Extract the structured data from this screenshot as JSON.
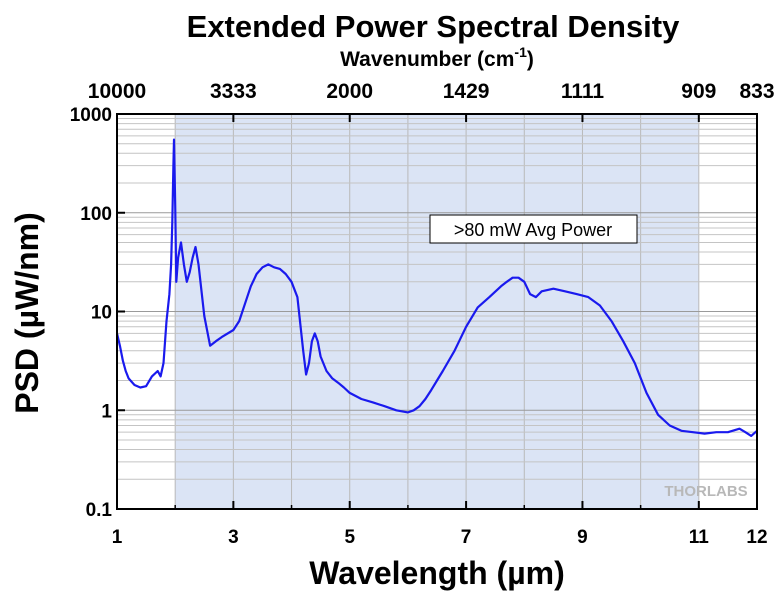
{
  "chart_data": {
    "type": "line",
    "title": "Extended Power Spectral Density",
    "xlabel": "Wavelength (µm)",
    "ylabel": "PSD (µW/nm)",
    "top_axis": {
      "label_main": "Wavenumber (cm",
      "label_sup": "-1",
      "label_end": ")",
      "ticks": [
        {
          "label": "10000",
          "x": 1.0
        },
        {
          "label": "3333",
          "x": 3.0
        },
        {
          "label": "2000",
          "x": 5.0
        },
        {
          "label": "1429",
          "x": 7.0
        },
        {
          "label": "1111",
          "x": 9.0
        },
        {
          "label": "909",
          "x": 11.0
        },
        {
          "label": "833",
          "x": 12.0
        }
      ]
    },
    "x_ticks": [
      1,
      3,
      5,
      7,
      9,
      11,
      12
    ],
    "x_tick_labels": [
      "1",
      "3",
      "5",
      "7",
      "9",
      "11",
      "12"
    ],
    "y_ticks": [
      0.1,
      1,
      10,
      100,
      1000
    ],
    "y_tick_labels": [
      "0.1",
      "1",
      "10",
      "100",
      "1000"
    ],
    "xlim": [
      1,
      12
    ],
    "ylim": [
      0.1,
      1000
    ],
    "y_scale": "log",
    "grid": true,
    "shaded_region": {
      "x_start": 2.0,
      "x_end": 11.0,
      "color": "#dbe4f5"
    },
    "annotation": ">80 mW Avg Power",
    "watermark": "THORLABS",
    "series_color": "#1a1aee",
    "series": [
      {
        "x": [
          1.0,
          1.05,
          1.1,
          1.15,
          1.2,
          1.3,
          1.4,
          1.5,
          1.6,
          1.7,
          1.75,
          1.8,
          1.85,
          1.9,
          1.93,
          1.95,
          1.97,
          1.98,
          2.0,
          2.02,
          2.05,
          2.1,
          2.15,
          2.2,
          2.25,
          2.3,
          2.35,
          2.4,
          2.5,
          2.6,
          2.7,
          2.8,
          3.0,
          3.1,
          3.2,
          3.3,
          3.4,
          3.5,
          3.6,
          3.7,
          3.8,
          3.9,
          4.0,
          4.1,
          4.2,
          4.25,
          4.3,
          4.35,
          4.4,
          4.45,
          4.5,
          4.6,
          4.7,
          4.8,
          4.9,
          5.0,
          5.2,
          5.4,
          5.6,
          5.8,
          6.0,
          6.1,
          6.2,
          6.3,
          6.4,
          6.5,
          6.6,
          6.8,
          7.0,
          7.2,
          7.4,
          7.6,
          7.7,
          7.8,
          7.9,
          8.0,
          8.1,
          8.2,
          8.3,
          8.5,
          8.7,
          8.9,
          9.1,
          9.3,
          9.5,
          9.7,
          9.9,
          10.1,
          10.3,
          10.5,
          10.7,
          10.9,
          11.1,
          11.3,
          11.5,
          11.7,
          11.8,
          11.9,
          12.0
        ],
        "values": [
          6.0,
          4.5,
          3.2,
          2.5,
          2.1,
          1.8,
          1.7,
          1.75,
          2.2,
          2.5,
          2.2,
          3.0,
          8.0,
          15.0,
          30.0,
          80.0,
          300.0,
          550.0,
          120.0,
          20.0,
          35.0,
          50.0,
          30.0,
          20.0,
          25.0,
          35.0,
          45.0,
          30.0,
          9.0,
          4.5,
          5.0,
          5.5,
          6.5,
          8.0,
          12.0,
          18.0,
          24.0,
          28.0,
          30.0,
          28.0,
          27.0,
          24.0,
          20.0,
          14.0,
          4.0,
          2.3,
          3.0,
          5.0,
          6.0,
          5.0,
          3.5,
          2.5,
          2.1,
          1.9,
          1.7,
          1.5,
          1.3,
          1.2,
          1.1,
          1.0,
          0.95,
          1.0,
          1.1,
          1.3,
          1.6,
          2.0,
          2.5,
          4.0,
          7.0,
          11.0,
          14.0,
          18.0,
          20.0,
          22.0,
          22.0,
          20.0,
          15.0,
          14.0,
          16.0,
          17.0,
          16.0,
          15.0,
          14.0,
          11.5,
          8.0,
          5.0,
          3.0,
          1.5,
          0.9,
          0.7,
          0.62,
          0.6,
          0.58,
          0.6,
          0.6,
          0.65,
          0.6,
          0.55,
          0.62
        ]
      }
    ]
  }
}
